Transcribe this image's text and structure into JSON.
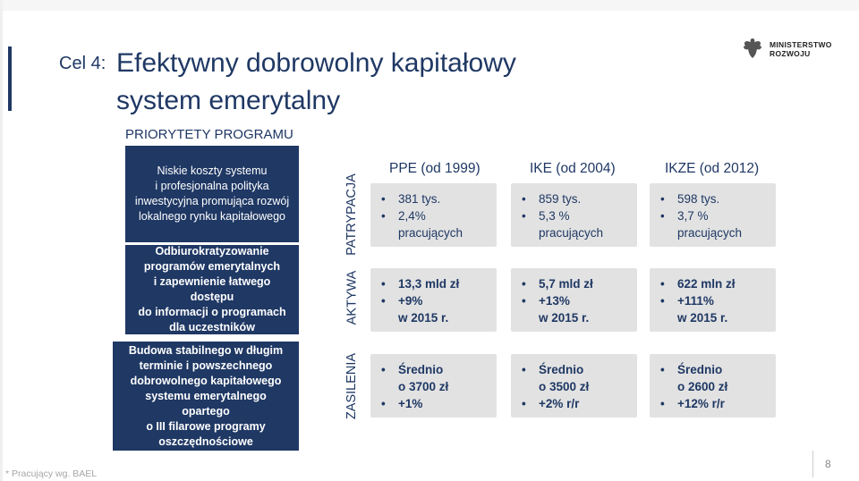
{
  "title": {
    "label": "Cel 4:",
    "line1": "Efektywny dobrowolny kapitałowy",
    "line2": "system emerytalny"
  },
  "logo": {
    "icon": "eagle-emblem-icon",
    "line1": "MINISTERSTWO",
    "line2": "ROZWOJU"
  },
  "priorities_heading": "PRIORYTETY PROGRAMU",
  "priorities": [
    [
      "Niskie koszty systemu",
      "i profesjonalna polityka",
      "inwestycyjna promująca rozwój",
      "lokalnego rynku kapitałowego"
    ],
    [
      "Odbiurokratyzowanie",
      "programów emerytalnych",
      "i zapewnienie łatwego dostępu",
      "do informacji o programach",
      "dla uczestników"
    ],
    [
      "Budowa stabilnego w długim",
      "terminie i powszechnego",
      "dobrowolnego kapitałowego",
      "systemu emerytalnego opartego",
      "o III filarowe programy",
      "oszczędnościowe"
    ]
  ],
  "row_labels": [
    "PATRYPACJA",
    "AKTYWA",
    "ZASILENIA"
  ],
  "columns": [
    {
      "name": "PPE",
      "since": "(od 1999)",
      "cells": [
        [
          {
            "b": true,
            "t": "381 tys."
          },
          {
            "b": true,
            "t": "2,4%"
          },
          {
            "b": false,
            "t": "pracujących"
          }
        ],
        [
          {
            "b": true,
            "t": "13,3 mld zł"
          },
          {
            "b": true,
            "t": "+9%"
          },
          {
            "b": false,
            "t": "w 2015 r."
          }
        ],
        [
          {
            "b": true,
            "t": "Średnio"
          },
          {
            "b": false,
            "t": "o 3700 zł"
          },
          {
            "b": true,
            "t": "+1%"
          }
        ]
      ]
    },
    {
      "name": "IKE",
      "since": "(od 2004)",
      "cells": [
        [
          {
            "b": true,
            "t": "859 tys."
          },
          {
            "b": true,
            "t": "5,3 %"
          },
          {
            "b": false,
            "t": "pracujących"
          }
        ],
        [
          {
            "b": true,
            "t": "5,7 mld zł"
          },
          {
            "b": true,
            "t": "+13%"
          },
          {
            "b": false,
            "t": "w 2015 r."
          }
        ],
        [
          {
            "b": true,
            "t": "Średnio"
          },
          {
            "b": false,
            "t": "o 3500 zł"
          },
          {
            "b": true,
            "t": "+2% r/r"
          }
        ]
      ]
    },
    {
      "name": "IKZE",
      "since": "(od 2012)",
      "cells": [
        [
          {
            "b": true,
            "t": "598 tys."
          },
          {
            "b": true,
            "t": "3,7 %"
          },
          {
            "b": false,
            "t": "pracujących"
          }
        ],
        [
          {
            "b": true,
            "t": "622 mln zł"
          },
          {
            "b": true,
            "t": "+111%"
          },
          {
            "b": false,
            "t": "w 2015 r."
          }
        ],
        [
          {
            "b": true,
            "t": "Średnio"
          },
          {
            "b": false,
            "t": "o 2600 zł"
          },
          {
            "b": true,
            "t": "+12% r/r"
          }
        ]
      ]
    }
  ],
  "footnote": "* Pracujący wg. BAEL",
  "page_number": "8",
  "colors": {
    "navy": "#1f3864",
    "cell_bg": "#e2e2e2"
  }
}
